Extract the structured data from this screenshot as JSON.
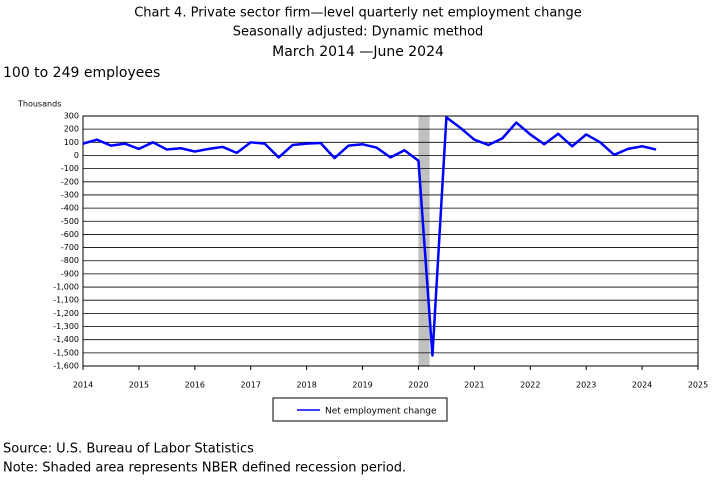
{
  "chart_data": {
    "type": "line",
    "title": "Chart 4. Private sector firm—level quarterly net employment change",
    "subtitle": "Seasonally adjusted: Dynamic method",
    "period": "March 2014  —June 2024",
    "size_class": "100 to 249 employees",
    "y_label": "Thousands",
    "source": "Source: U.S. Bureau of Labor Statistics",
    "note": "Note: Shaded area represents NBER defined recession period.",
    "x": [
      2014,
      2014.25,
      2014.5,
      2014.75,
      2015,
      2015.25,
      2015.5,
      2015.75,
      2016,
      2016.25,
      2016.5,
      2016.75,
      2017,
      2017.25,
      2017.5,
      2017.75,
      2018,
      2018.25,
      2018.5,
      2018.75,
      2019,
      2019.25,
      2019.5,
      2019.75,
      2020,
      2020.25,
      2020.5,
      2020.75,
      2021,
      2021.25,
      2021.5,
      2021.75,
      2022,
      2022.25,
      2022.5,
      2022.75,
      2023,
      2023.25,
      2023.5,
      2023.75,
      2024,
      2024.25
    ],
    "series": [
      {
        "name": "Net employment change",
        "color": "#0000ff",
        "values": [
          90,
          120,
          75,
          90,
          50,
          100,
          45,
          55,
          30,
          50,
          65,
          20,
          100,
          90,
          -15,
          80,
          90,
          95,
          -20,
          75,
          85,
          60,
          -15,
          40,
          -40,
          -1520,
          290,
          210,
          120,
          80,
          130,
          250,
          160,
          85,
          165,
          70,
          160,
          100,
          5,
          50,
          70,
          45
        ]
      }
    ],
    "recession": [
      2020,
      2020.2
    ],
    "recession_color": "#c0c0c0",
    "xlim": [
      2014,
      2025
    ],
    "xticks": [
      2014,
      2015,
      2016,
      2017,
      2018,
      2019,
      2020,
      2021,
      2022,
      2023,
      2024,
      2025
    ],
    "ylim": [
      -1600,
      300
    ],
    "yticks": [
      300,
      200,
      100,
      0,
      -100,
      -200,
      -300,
      -400,
      -500,
      -600,
      -700,
      -800,
      -900,
      {
        "value": -1000,
        "label": "-1,000"
      },
      {
        "value": -1100,
        "label": "-1,100"
      },
      {
        "value": -1200,
        "label": "-1,200"
      },
      {
        "value": -1300,
        "label": "-1,300"
      },
      {
        "value": -1400,
        "label": "-1,400"
      },
      {
        "value": -1500,
        "label": "-1,500"
      },
      {
        "value": -1600,
        "label": "-1,600"
      }
    ],
    "grid": true
  }
}
